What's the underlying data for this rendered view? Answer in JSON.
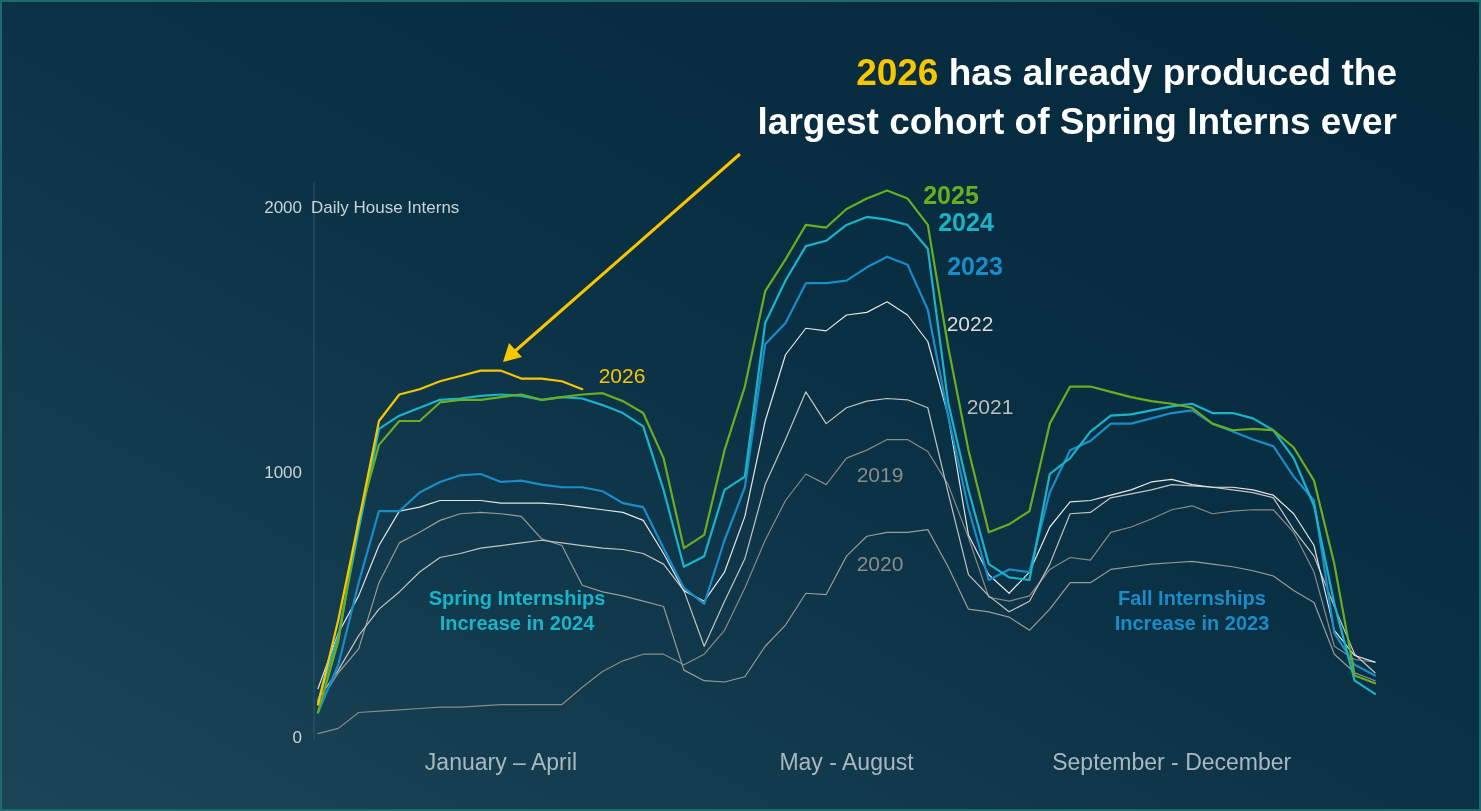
{
  "chart_data": {
    "type": "line",
    "title": "2026 has already produced the largest cohort of Spring Interns ever",
    "ylabel": "Daily House Interns",
    "ylim": [
      0,
      2100
    ],
    "yticks": [
      0,
      1000,
      2000
    ],
    "grid": false,
    "legend": false,
    "marker": "none",
    "line_style": "solid",
    "categories": [
      null,
      null,
      null,
      null,
      null,
      null,
      null,
      null,
      null,
      "January – April",
      null,
      null,
      null,
      null,
      null,
      null,
      null,
      null,
      null,
      null,
      null,
      null,
      null,
      null,
      null,
      null,
      "May - August",
      null,
      null,
      null,
      null,
      null,
      null,
      null,
      null,
      null,
      null,
      null,
      null,
      null,
      null,
      null,
      "September - December",
      null,
      null,
      null,
      null,
      null,
      null,
      null,
      null,
      null,
      null
    ],
    "annotations": [
      "Spring Internships Increase in 2024",
      "Fall Internships Increase in 2023"
    ],
    "series": [
      {
        "name": "2019",
        "color": "#8a8a8a",
        "values": [
          20,
          40,
          100,
          105,
          110,
          115,
          120,
          120,
          125,
          130,
          130,
          130,
          130,
          195,
          255,
          295,
          320,
          320,
          280,
          320,
          410,
          570,
          750,
          900,
          1000,
          960,
          1060,
          1090,
          1130,
          1130,
          1085,
          960,
          760,
          535,
          520,
          540,
          640,
          685,
          675,
          780,
          800,
          830,
          865,
          880,
          850,
          860,
          865,
          865,
          780,
          630,
          350,
          300,
          290
        ]
      },
      {
        "name": "2020",
        "color": "#9a9a9a",
        "values": [
          130,
          250,
          340,
          590,
          740,
          780,
          825,
          850,
          855,
          850,
          840,
          755,
          730,
          580,
          555,
          540,
          520,
          500,
          260,
          220,
          215,
          235,
          350,
          430,
          550,
          545,
          690,
          765,
          780,
          780,
          790,
          650,
          490,
          480,
          460,
          410,
          490,
          590,
          590,
          640,
          650,
          660,
          665,
          670,
          660,
          650,
          635,
          615,
          560,
          515,
          320,
          250,
          220
        ]
      },
      {
        "name": "2021",
        "color": "#c4c4c4",
        "values": [
          150,
          260,
          390,
          490,
          555,
          630,
          685,
          700,
          720,
          730,
          740,
          750,
          740,
          730,
          720,
          715,
          700,
          660,
          560,
          350,
          520,
          680,
          960,
          1130,
          1310,
          1190,
          1250,
          1275,
          1285,
          1280,
          1250,
          930,
          620,
          540,
          480,
          520,
          660,
          850,
          855,
          910,
          925,
          940,
          960,
          955,
          950,
          940,
          930,
          910,
          790,
          690,
          500,
          320,
          250
        ]
      },
      {
        "name": "2022",
        "color": "#e6e6e6",
        "values": [
          190,
          400,
          540,
          730,
          860,
          875,
          900,
          900,
          900,
          890,
          890,
          890,
          885,
          875,
          865,
          855,
          825,
          700,
          560,
          520,
          630,
          840,
          1200,
          1450,
          1550,
          1540,
          1600,
          1610,
          1650,
          1600,
          1500,
          1220,
          770,
          620,
          550,
          630,
          800,
          895,
          900,
          920,
          940,
          970,
          980,
          960,
          950,
          950,
          940,
          920,
          850,
          730,
          410,
          315,
          290
        ]
      },
      {
        "name": "2023",
        "color": "#1a8cc8",
        "values": [
          100,
          280,
          590,
          860,
          860,
          930,
          970,
          995,
          1000,
          970,
          975,
          960,
          950,
          950,
          935,
          890,
          875,
          720,
          570,
          510,
          750,
          950,
          1490,
          1570,
          1720,
          1720,
          1730,
          1780,
          1820,
          1790,
          1620,
          1220,
          870,
          600,
          640,
          630,
          930,
          1090,
          1125,
          1190,
          1190,
          1210,
          1230,
          1240,
          1190,
          1160,
          1130,
          1105,
          990,
          900,
          400,
          280,
          240
        ]
      },
      {
        "name": "2024",
        "color": "#1ab4c8",
        "values": [
          140,
          390,
          790,
          1170,
          1220,
          1250,
          1280,
          1285,
          1295,
          1300,
          1295,
          1280,
          1290,
          1285,
          1260,
          1230,
          1180,
          940,
          650,
          690,
          940,
          990,
          1570,
          1730,
          1860,
          1880,
          1940,
          1970,
          1960,
          1940,
          1850,
          1270,
          940,
          660,
          610,
          600,
          1000,
          1060,
          1160,
          1220,
          1225,
          1240,
          1255,
          1265,
          1230,
          1230,
          1210,
          1165,
          1060,
          880,
          510,
          220,
          170
        ]
      },
      {
        "name": "2025",
        "color": "#6aad1f",
        "values": [
          100,
          370,
          830,
          1110,
          1200,
          1200,
          1270,
          1280,
          1280,
          1290,
          1300,
          1280,
          1290,
          1300,
          1305,
          1275,
          1230,
          1060,
          720,
          770,
          1090,
          1330,
          1690,
          1810,
          1940,
          1930,
          2000,
          2040,
          2070,
          2040,
          1940,
          1480,
          1090,
          780,
          810,
          860,
          1190,
          1330,
          1330,
          1310,
          1290,
          1275,
          1265,
          1250,
          1190,
          1165,
          1170,
          1165,
          1100,
          975,
          660,
          240,
          210
        ]
      },
      {
        "name": "2026",
        "color": "#f7c600",
        "values": [
          130,
          450,
          820,
          1200,
          1300,
          1320,
          1350,
          1370,
          1390,
          1390,
          1360,
          1360,
          1350,
          1320,
          null,
          null,
          null,
          null,
          null,
          null,
          null,
          null,
          null,
          null,
          null,
          null,
          null,
          null,
          null,
          null,
          null,
          null,
          null,
          null,
          null,
          null,
          null,
          null,
          null,
          null,
          null,
          null,
          null,
          null,
          null,
          null,
          null,
          null,
          null,
          null,
          null,
          null,
          null
        ]
      }
    ]
  }
}
